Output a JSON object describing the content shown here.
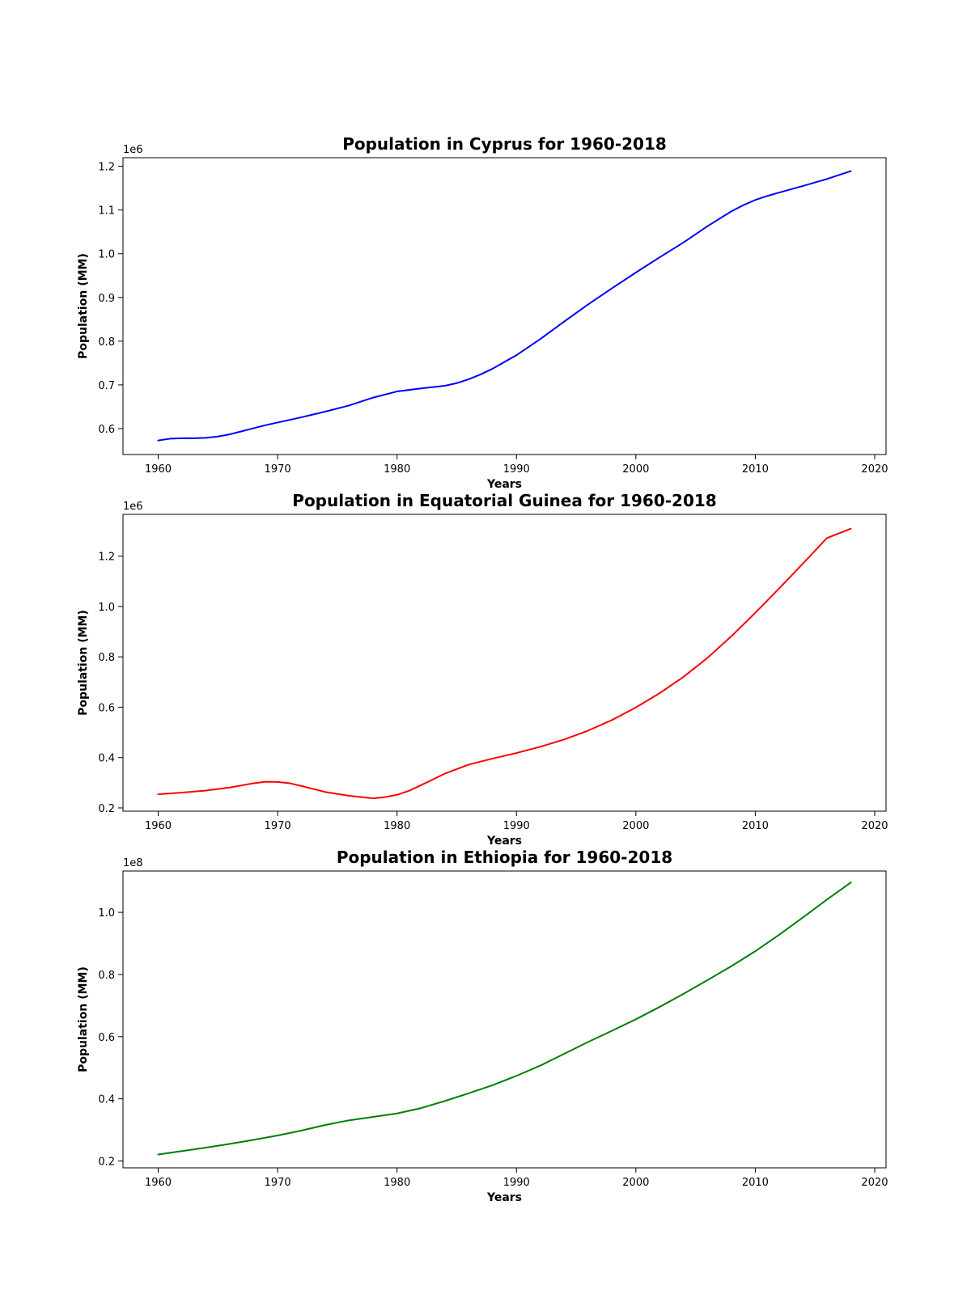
{
  "chart_data": [
    {
      "type": "line",
      "title": "Population in Cyprus for 1960-2018",
      "xlabel": "Years",
      "ylabel": "Population (MM)",
      "offset_label": "1e6",
      "scale": 1000000,
      "color": "#0000ff",
      "xlim": [
        1957.05,
        2020.95
      ],
      "ylim": [
        0.5408,
        1.2196
      ],
      "x_ticks": [
        1960,
        1970,
        1980,
        1990,
        2000,
        2010,
        2020
      ],
      "y_ticks": [
        0.6,
        0.7,
        0.8,
        0.9,
        1.0,
        1.1,
        1.2
      ],
      "y_tick_labels": [
        "0.6",
        "0.7",
        "0.8",
        "0.9",
        "1.0",
        "1.1",
        "1.2"
      ],
      "grid": false,
      "series": [
        {
          "x": [
            1960,
            1961,
            1962,
            1963,
            1964,
            1965,
            1966,
            1967,
            1968,
            1969,
            1970,
            1972,
            1974,
            1976,
            1978,
            1980,
            1982,
            1984,
            1985,
            1986,
            1987,
            1988,
            1990,
            1992,
            1994,
            1996,
            1998,
            2000,
            2002,
            2004,
            2006,
            2008,
            2009,
            2010,
            2011,
            2012,
            2014,
            2016,
            2018
          ],
          "values": [
            0.573,
            0.577,
            0.578,
            0.578,
            0.579,
            0.582,
            0.587,
            0.594,
            0.601,
            0.608,
            0.614,
            0.626,
            0.639,
            0.653,
            0.671,
            0.685,
            0.692,
            0.698,
            0.704,
            0.713,
            0.724,
            0.737,
            0.768,
            0.805,
            0.845,
            0.884,
            0.921,
            0.957,
            0.992,
            1.026,
            1.063,
            1.097,
            1.111,
            1.123,
            1.132,
            1.14,
            1.155,
            1.171,
            1.189
          ]
        }
      ]
    },
    {
      "type": "line",
      "title": "Population in Equatorial Guinea for 1960-2018",
      "xlabel": "Years",
      "ylabel": "Population (MM)",
      "offset_label": "1e6",
      "scale": 1000000,
      "color": "#ff0000",
      "xlim": [
        1957.05,
        2020.95
      ],
      "ylim": [
        0.187,
        1.366
      ],
      "x_ticks": [
        1960,
        1970,
        1980,
        1990,
        2000,
        2010,
        2020
      ],
      "y_ticks": [
        0.2,
        0.4,
        0.6,
        0.8,
        1.0,
        1.2
      ],
      "y_tick_labels": [
        "0.2",
        "0.4",
        "0.6",
        "0.8",
        "1.0",
        "1.2"
      ],
      "grid": false,
      "series": [
        {
          "x": [
            1960,
            1962,
            1964,
            1966,
            1968,
            1969,
            1970,
            1971,
            1972,
            1974,
            1976,
            1978,
            1979,
            1980,
            1981,
            1982,
            1984,
            1986,
            1988,
            1990,
            1992,
            1994,
            1996,
            1998,
            2000,
            2002,
            2004,
            2006,
            2008,
            2010,
            2012,
            2014,
            2016,
            2018
          ],
          "values": [
            0.254,
            0.261,
            0.269,
            0.281,
            0.298,
            0.304,
            0.303,
            0.298,
            0.287,
            0.263,
            0.248,
            0.238,
            0.243,
            0.252,
            0.268,
            0.29,
            0.336,
            0.372,
            0.396,
            0.418,
            0.443,
            0.472,
            0.507,
            0.549,
            0.599,
            0.656,
            0.721,
            0.796,
            0.882,
            0.975,
            1.072,
            1.171,
            1.272,
            1.309
          ]
        }
      ]
    },
    {
      "type": "line",
      "title": "Population in Ethiopia for 1960-2018",
      "xlabel": "Years",
      "ylabel": "Population (MM)",
      "offset_label": "1e8",
      "scale": 100000000,
      "color": "#008000",
      "xlim": [
        1957.05,
        2020.95
      ],
      "ylim": [
        0.178,
        1.133
      ],
      "x_ticks": [
        1960,
        1970,
        1980,
        1990,
        2000,
        2010,
        2020
      ],
      "y_ticks": [
        0.2,
        0.4,
        0.6,
        0.8,
        1.0
      ],
      "y_tick_labels": [
        "0.2",
        "0.4",
        "0.6",
        "0.8",
        "1.0"
      ],
      "grid": false,
      "series": [
        {
          "x": [
            1960,
            1962,
            1964,
            1966,
            1968,
            1970,
            1972,
            1974,
            1976,
            1978,
            1980,
            1982,
            1984,
            1986,
            1988,
            1990,
            1992,
            1994,
            1996,
            1998,
            2000,
            2002,
            2004,
            2006,
            2008,
            2010,
            2012,
            2014,
            2016,
            2018
          ],
          "values": [
            0.221,
            0.232,
            0.243,
            0.255,
            0.268,
            0.282,
            0.298,
            0.316,
            0.331,
            0.342,
            0.353,
            0.37,
            0.393,
            0.418,
            0.444,
            0.474,
            0.507,
            0.545,
            0.583,
            0.619,
            0.656,
            0.696,
            0.738,
            0.782,
            0.827,
            0.875,
            0.928,
            0.984,
            1.041,
            1.096
          ]
        }
      ]
    }
  ]
}
